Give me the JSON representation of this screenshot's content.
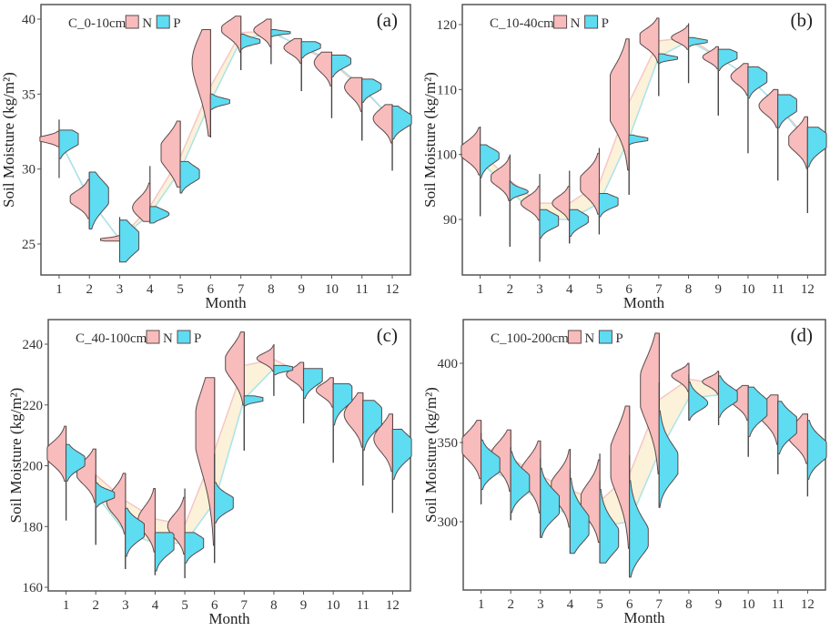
{
  "colors": {
    "N": "#f8bcbc",
    "P": "#5ddcf2",
    "ribbon": "#fbefd2",
    "outline": "#5a4a4a",
    "frame": "#555555"
  },
  "chart_data": [
    {
      "type": "violin",
      "panel_tag": "(a)",
      "title": "C_0-10cm",
      "legend": [
        "N",
        "P"
      ],
      "legend_placement": "top-left",
      "xlabel": "Month",
      "ylabel": "Soil Moisture  (kg/m²)",
      "categories": [
        "1",
        "2",
        "3",
        "4",
        "5",
        "6",
        "7",
        "8",
        "9",
        "10",
        "11",
        "12"
      ],
      "yticks": [
        25,
        30,
        35,
        40
      ],
      "ylim": [
        22.9,
        41.1
      ],
      "series": [
        {
          "name": "N",
          "means": [
            32.0,
            28.0,
            25.3,
            27.5,
            30.8,
            35.5,
            39.1,
            39.2,
            38.1,
            37.1,
            35.4,
            33.3
          ],
          "min": [
            31.5,
            26.0,
            25.2,
            26.5,
            28.8,
            32.2,
            36.6,
            37.0,
            35.2,
            33.4,
            31.9,
            29.9
          ],
          "max": [
            33.3,
            29.8,
            26.8,
            30.2,
            33.2,
            39.3,
            40.2,
            40.0,
            38.7,
            37.8,
            36.1,
            34.3
          ],
          "peaks": [
            [
              32.0,
              1.0
            ],
            [
              28.0,
              0.8
            ],
            [
              25.3,
              0.9
            ],
            [
              27.4,
              0.6
            ],
            [
              31.2,
              0.9
            ],
            [
              37.5,
              0.8
            ],
            [
              39.4,
              0.8
            ],
            [
              39.3,
              0.6
            ],
            [
              38.1,
              0.6
            ],
            [
              37.1,
              0.6
            ],
            [
              35.5,
              0.6
            ],
            [
              33.4,
              0.7
            ]
          ],
          "spread": [
            0.2,
            0.5,
            0.1,
            0.6,
            1.0,
            1.6,
            0.5,
            0.4,
            0.4,
            0.6,
            0.6,
            0.6
          ]
        },
        {
          "name": "P",
          "means": [
            32.0,
            28.0,
            25.3,
            27.0,
            29.9,
            34.5,
            38.6,
            39.1,
            38.2,
            37.2,
            35.5,
            33.3
          ],
          "min": [
            29.4,
            26.0,
            23.8,
            26.4,
            28.4,
            32.1,
            36.6,
            37.0,
            35.2,
            33.4,
            31.9,
            29.9
          ],
          "max": [
            32.6,
            29.8,
            26.6,
            27.5,
            30.5,
            35.0,
            39.0,
            39.3,
            38.5,
            37.6,
            36.0,
            34.2
          ],
          "peaks": [
            [
              32.0,
              1.0
            ],
            [
              28.3,
              0.9
            ],
            [
              25.2,
              1.0
            ],
            [
              27.0,
              0.7
            ],
            [
              29.6,
              0.9
            ],
            [
              34.5,
              0.9
            ],
            [
              38.5,
              0.9
            ],
            [
              39.1,
              0.9
            ],
            [
              38.2,
              0.8
            ],
            [
              37.2,
              0.8
            ],
            [
              35.5,
              0.8
            ],
            [
              33.3,
              0.9
            ]
          ],
          "spread": [
            0.5,
            0.9,
            0.8,
            0.3,
            0.5,
            0.2,
            0.2,
            0.1,
            0.3,
            0.4,
            0.4,
            0.5
          ]
        }
      ]
    },
    {
      "type": "violin",
      "panel_tag": "(b)",
      "title": "C_10-40cm",
      "legend": [
        "N",
        "P"
      ],
      "legend_placement": "top-left",
      "xlabel": "Month",
      "ylabel": "Soil Moisture  (kg/m²)",
      "categories": [
        "1",
        "2",
        "3",
        "4",
        "5",
        "6",
        "7",
        "8",
        "9",
        "10",
        "11",
        "12"
      ],
      "yticks": [
        90,
        100,
        110,
        120
      ],
      "ylim": [
        82,
        122.5
      ],
      "series": [
        {
          "name": "N",
          "means": [
            100.5,
            96.0,
            92.5,
            92.5,
            95.5,
            108.0,
            117.5,
            118.0,
            115.0,
            112.0,
            107.5,
            102.5
          ],
          "min": [
            90.5,
            85.8,
            83.5,
            86.3,
            87.7,
            93.8,
            109.0,
            111.0,
            106.0,
            100.2,
            96.0,
            91.0
          ],
          "max": [
            104.3,
            100.0,
            97.0,
            97.5,
            101.0,
            117.8,
            121.0,
            120.2,
            116.6,
            114.0,
            110.0,
            105.8
          ],
          "peaks": [
            [
              100.5,
              0.9
            ],
            [
              96.5,
              0.8
            ],
            [
              92.5,
              0.7
            ],
            [
              92.5,
              0.6
            ],
            [
              95.5,
              0.9
            ],
            [
              109.0,
              1.2
            ],
            [
              118.0,
              0.9
            ],
            [
              118.0,
              0.6
            ],
            [
              115.0,
              0.5
            ],
            [
              112.0,
              0.6
            ],
            [
              107.5,
              0.7
            ],
            [
              102.0,
              0.8
            ]
          ],
          "spread": [
            1.4,
            1.2,
            1.0,
            1.0,
            1.8,
            4.0,
            1.3,
            0.7,
            0.7,
            1.1,
            1.3,
            1.6
          ]
        },
        {
          "name": "P",
          "means": [
            99.0,
            94.5,
            90.0,
            90.0,
            92.5,
            102.5,
            115.0,
            117.5,
            115.0,
            112.0,
            107.5,
            102.0
          ],
          "min": [
            90.5,
            85.8,
            83.5,
            86.3,
            87.7,
            93.8,
            109.0,
            111.0,
            106.0,
            100.2,
            96.0,
            91.0
          ],
          "max": [
            101.5,
            96.0,
            91.5,
            91.5,
            94.0,
            103.0,
            115.5,
            118.0,
            116.2,
            113.5,
            109.2,
            104.2
          ],
          "peaks": [
            [
              100.0,
              0.9
            ],
            [
              94.2,
              0.7
            ],
            [
              89.7,
              1.0
            ],
            [
              90.0,
              0.8
            ],
            [
              92.8,
              1.0
            ],
            [
              102.3,
              1.0
            ],
            [
              114.8,
              0.9
            ],
            [
              117.4,
              0.9
            ],
            [
              115.3,
              0.9
            ],
            [
              111.8,
              0.9
            ],
            [
              107.6,
              1.0
            ],
            [
              102.2,
              1.0
            ]
          ],
          "spread": [
            1.0,
            0.5,
            1.0,
            1.0,
            0.8,
            0.3,
            0.3,
            0.3,
            0.8,
            1.2,
            1.3,
            1.5
          ]
        }
      ]
    },
    {
      "type": "violin",
      "panel_tag": "(c)",
      "title": "C_40-100cm",
      "legend": [
        "N",
        "P"
      ],
      "legend_placement": "top-left",
      "xlabel": "Month",
      "ylabel": "Soil Moisture  (kg/m²)",
      "categories": [
        "1",
        "2",
        "3",
        "4",
        "5",
        "6",
        "7",
        "8",
        "9",
        "10",
        "11",
        "12"
      ],
      "yticks": [
        160,
        180,
        200,
        220,
        240
      ],
      "ylim": [
        159,
        248.5
      ],
      "series": [
        {
          "name": "N",
          "means": [
            204.0,
            197.0,
            188.5,
            182.5,
            180.5,
            205.0,
            233.0,
            235.0,
            230.0,
            224.5,
            216.5,
            208.5
          ],
          "min": [
            182.0,
            174.0,
            166.0,
            164.0,
            163.0,
            168.0,
            205.0,
            223.0,
            214.0,
            201.0,
            193.5,
            184.5
          ],
          "max": [
            213.0,
            205.5,
            197.5,
            192.5,
            192.5,
            229.0,
            244.0,
            240.0,
            234.0,
            229.0,
            224.0,
            217.0
          ],
          "peaks": [
            [
              204.0,
              0.9
            ],
            [
              198.0,
              0.8
            ],
            [
              188.0,
              0.7
            ],
            [
              182.0,
              0.6
            ],
            [
              180.0,
              0.6
            ],
            [
              214.0,
              0.9
            ],
            [
              234.0,
              0.8
            ],
            [
              235.5,
              0.6
            ],
            [
              230.0,
              0.6
            ],
            [
              225.0,
              0.6
            ],
            [
              217.0,
              0.7
            ],
            [
              209.0,
              0.7
            ]
          ],
          "spread": [
            3.5,
            3.5,
            4.0,
            4.0,
            3.5,
            12.0,
            5.0,
            1.5,
            2.0,
            2.0,
            4.0,
            4.0
          ]
        },
        {
          "name": "P",
          "means": [
            201.5,
            190.5,
            178.0,
            174.5,
            174.5,
            188.0,
            222.0,
            232.0,
            230.0,
            222.5,
            215.5,
            206.0
          ],
          "min": [
            182.0,
            174.0,
            166.0,
            164.0,
            163.0,
            168.0,
            205.0,
            223.0,
            214.0,
            201.0,
            193.5,
            184.5
          ],
          "max": [
            207.0,
            197.0,
            186.0,
            178.0,
            178.0,
            204.0,
            223.0,
            233.0,
            232.0,
            227.0,
            221.5,
            212.0
          ],
          "peaks": [
            [
              201.5,
              0.9
            ],
            [
              190.3,
              0.9
            ],
            [
              179.0,
              1.0
            ],
            [
              175.0,
              1.0
            ],
            [
              174.5,
              0.9
            ],
            [
              187.7,
              1.0
            ],
            [
              221.8,
              1.0
            ],
            [
              232.0,
              1.0
            ],
            [
              230.0,
              1.0
            ],
            [
              224.0,
              1.0
            ],
            [
              216.5,
              1.0
            ],
            [
              206.0,
              1.0
            ]
          ],
          "spread": [
            2.5,
            1.5,
            3.0,
            3.5,
            2.5,
            2.5,
            0.8,
            0.8,
            3.0,
            3.5,
            4.0,
            4.0
          ]
        }
      ]
    },
    {
      "type": "violin",
      "panel_tag": "(d)",
      "title": "C_100-200cm",
      "legend": [
        "N",
        "P"
      ],
      "legend_placement": "top-left",
      "xlabel": "Month",
      "ylabel": "Soil Moisture  (kg/m²)",
      "categories": [
        "1",
        "2",
        "3",
        "4",
        "5",
        "6",
        "7",
        "8",
        "9",
        "10",
        "11",
        "12"
      ],
      "yticks": [
        300,
        350,
        400
      ],
      "ylim": [
        256,
        425
      ],
      "series": [
        {
          "name": "N",
          "means": [
            348.0,
            340.0,
            329.0,
            320.0,
            313.0,
            330.0,
            377.0,
            390.0,
            387.0,
            377.0,
            367.0,
            355.0
          ],
          "min": [
            311.0,
            301.0,
            290.0,
            280.0,
            274.0,
            265.0,
            309.0,
            364.0,
            361.0,
            341.0,
            330.0,
            316.0
          ],
          "max": [
            364.0,
            358.0,
            351.0,
            346.0,
            343.0,
            373.0,
            419.0,
            400.0,
            395.0,
            386.0,
            380.0,
            368.0
          ],
          "peaks": [
            [
              348.0,
              0.9
            ],
            [
              342.0,
              0.8
            ],
            [
              331.0,
              0.8
            ],
            [
              322.0,
              0.8
            ],
            [
              313.0,
              0.8
            ],
            [
              340.0,
              0.9
            ],
            [
              385.0,
              0.9
            ],
            [
              393.0,
              0.7
            ],
            [
              389.0,
              0.6
            ],
            [
              378.0,
              0.7
            ],
            [
              370.0,
              0.8
            ],
            [
              355.0,
              0.8
            ]
          ],
          "spread": [
            8.0,
            8.0,
            9.0,
            9.0,
            10.0,
            18.0,
            18.0,
            3.0,
            2.5,
            5.0,
            7.0,
            7.0
          ]
        },
        {
          "name": "P",
          "means": [
            336.0,
            326.0,
            313.0,
            304.0,
            297.0,
            300.0,
            344.0,
            378.0,
            380.0,
            372.0,
            361.0,
            347.0
          ],
          "min": [
            311.0,
            301.0,
            290.0,
            280.0,
            274.0,
            265.0,
            309.0,
            364.0,
            361.0,
            341.0,
            330.0,
            316.0
          ],
          "max": [
            356.0,
            347.0,
            340.0,
            333.0,
            326.0,
            342.0,
            388.0,
            393.0,
            392.0,
            385.0,
            376.0,
            364.0
          ],
          "peaks": [
            [
              336.0,
              1.0
            ],
            [
              324.0,
              1.0
            ],
            [
              310.0,
              1.0
            ],
            [
              296.0,
              1.0
            ],
            [
              288.0,
              1.0
            ],
            [
              288.0,
              1.0
            ],
            [
              335.0,
              1.0
            ],
            [
              374.0,
              0.8
            ],
            [
              379.0,
              0.9
            ],
            [
              372.0,
              1.0
            ],
            [
              361.0,
              1.0
            ],
            [
              345.0,
              1.0
            ]
          ],
          "spread": [
            6.0,
            7.0,
            8.0,
            9.0,
            9.0,
            10.0,
            10.0,
            4.0,
            5.0,
            7.0,
            7.0,
            7.0
          ]
        }
      ]
    }
  ]
}
